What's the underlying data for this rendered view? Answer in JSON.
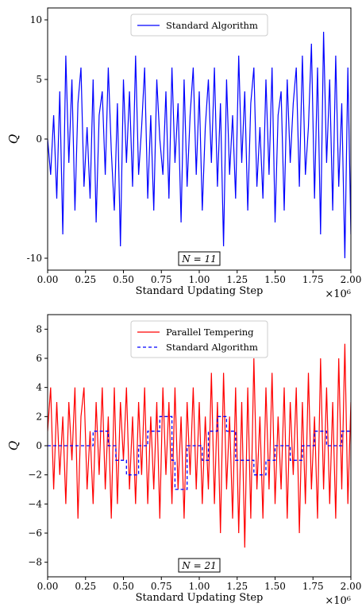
{
  "chart_data": [
    {
      "type": "line",
      "title": "",
      "xlabel": "Standard Updating Step",
      "ylabel": "Q",
      "x_scale_note": "×10⁶",
      "xlim": [
        0,
        2.0
      ],
      "ylim": [
        -11,
        11
      ],
      "x_ticks": [
        "0.00",
        "0.25",
        "0.50",
        "0.75",
        "1.00",
        "1.25",
        "1.50",
        "1.75",
        "2.00"
      ],
      "y_ticks": [
        {
          "value": 10,
          "label": "10"
        },
        {
          "value": 5,
          "label": "5"
        },
        {
          "value": 0,
          "label": "0"
        },
        {
          "value": -10,
          "label": "-10"
        }
      ],
      "annotation": "N = 11",
      "legend": {
        "placement": "top-center",
        "entries": [
          "Standard Algorithm"
        ]
      },
      "series": [
        {
          "name": "Standard Algorithm",
          "color": "#0000ff",
          "style": "solid",
          "x": [
            0.0,
            0.02,
            0.04,
            0.06,
            0.08,
            0.1,
            0.12,
            0.14,
            0.16,
            0.18,
            0.2,
            0.22,
            0.24,
            0.26,
            0.28,
            0.3,
            0.32,
            0.34,
            0.36,
            0.38,
            0.4,
            0.42,
            0.44,
            0.46,
            0.48,
            0.5,
            0.52,
            0.54,
            0.56,
            0.58,
            0.6,
            0.62,
            0.64,
            0.66,
            0.68,
            0.7,
            0.72,
            0.74,
            0.76,
            0.78,
            0.8,
            0.82,
            0.84,
            0.86,
            0.88,
            0.9,
            0.92,
            0.94,
            0.96,
            0.98,
            1.0,
            1.02,
            1.04,
            1.06,
            1.08,
            1.1,
            1.12,
            1.14,
            1.16,
            1.18,
            1.2,
            1.22,
            1.24,
            1.26,
            1.28,
            1.3,
            1.32,
            1.34,
            1.36,
            1.38,
            1.4,
            1.42,
            1.44,
            1.46,
            1.48,
            1.5,
            1.52,
            1.54,
            1.56,
            1.58,
            1.6,
            1.62,
            1.64,
            1.66,
            1.68,
            1.7,
            1.72,
            1.74,
            1.76,
            1.78,
            1.8,
            1.82,
            1.84,
            1.86,
            1.88,
            1.9,
            1.92,
            1.94,
            1.96,
            1.98,
            2.0
          ],
          "values": [
            0,
            -3,
            2,
            -5,
            4,
            -8,
            7,
            -2,
            5,
            -6,
            3,
            6,
            -4,
            1,
            -5,
            5,
            -7,
            2,
            4,
            -3,
            6,
            -1,
            -6,
            3,
            -9,
            5,
            -2,
            4,
            -4,
            7,
            -3,
            1,
            6,
            -5,
            2,
            -6,
            5,
            0,
            -3,
            4,
            -5,
            6,
            -2,
            3,
            -7,
            5,
            -4,
            2,
            6,
            -3,
            4,
            -6,
            1,
            5,
            -2,
            6,
            -4,
            3,
            -9,
            5,
            -3,
            2,
            -5,
            7,
            -2,
            4,
            -6,
            3,
            6,
            -4,
            1,
            -5,
            5,
            -3,
            6,
            -7,
            2,
            4,
            -6,
            5,
            -2,
            3,
            6,
            -4,
            7,
            -3,
            1,
            8,
            -5,
            6,
            -8,
            9,
            -2,
            5,
            -6,
            7,
            -4,
            3,
            -10,
            6,
            -8
          ]
        }
      ]
    },
    {
      "type": "line",
      "title": "",
      "xlabel": "Standard Updating Step",
      "ylabel": "Q",
      "x_scale_note": "×10⁶",
      "xlim": [
        0,
        2.0
      ],
      "ylim": [
        -9,
        9
      ],
      "x_ticks": [
        "0.00",
        "0.25",
        "0.50",
        "0.75",
        "1.00",
        "1.25",
        "1.50",
        "1.75",
        "2.00"
      ],
      "y_ticks": [
        {
          "value": 8,
          "label": "8"
        },
        {
          "value": 6,
          "label": "6"
        },
        {
          "value": 4,
          "label": "4"
        },
        {
          "value": 2,
          "label": "2"
        },
        {
          "value": 0,
          "label": "0"
        },
        {
          "value": -2,
          "label": "−2"
        },
        {
          "value": -4,
          "label": "−4"
        },
        {
          "value": -6,
          "label": "−6"
        },
        {
          "value": -8,
          "label": "−8"
        }
      ],
      "annotation": "N = 21",
      "legend": {
        "placement": "top-center",
        "entries": [
          "Parallel Tempering",
          "Standard Algorithm"
        ]
      },
      "series": [
        {
          "name": "Parallel Tempering",
          "color": "#ff0000",
          "style": "solid",
          "x": [
            0.0,
            0.02,
            0.04,
            0.06,
            0.08,
            0.1,
            0.12,
            0.14,
            0.16,
            0.18,
            0.2,
            0.22,
            0.24,
            0.26,
            0.28,
            0.3,
            0.32,
            0.34,
            0.36,
            0.38,
            0.4,
            0.42,
            0.44,
            0.46,
            0.48,
            0.5,
            0.52,
            0.54,
            0.56,
            0.58,
            0.6,
            0.62,
            0.64,
            0.66,
            0.68,
            0.7,
            0.72,
            0.74,
            0.76,
            0.78,
            0.8,
            0.82,
            0.84,
            0.86,
            0.88,
            0.9,
            0.92,
            0.94,
            0.96,
            0.98,
            1.0,
            1.02,
            1.04,
            1.06,
            1.08,
            1.1,
            1.12,
            1.14,
            1.16,
            1.18,
            1.2,
            1.22,
            1.24,
            1.26,
            1.28,
            1.3,
            1.32,
            1.34,
            1.36,
            1.38,
            1.4,
            1.42,
            1.44,
            1.46,
            1.48,
            1.5,
            1.52,
            1.54,
            1.56,
            1.58,
            1.6,
            1.62,
            1.64,
            1.66,
            1.68,
            1.7,
            1.72,
            1.74,
            1.76,
            1.78,
            1.8,
            1.82,
            1.84,
            1.86,
            1.88,
            1.9,
            1.92,
            1.94,
            1.96,
            1.98,
            2.0
          ],
          "values": [
            1,
            4,
            -3,
            3,
            -2,
            2,
            -4,
            3,
            -1,
            4,
            -5,
            2,
            4,
            -3,
            1,
            -4,
            3,
            -2,
            4,
            -3,
            2,
            -5,
            4,
            -4,
            3,
            -1,
            4,
            -3,
            2,
            -4,
            3,
            -2,
            4,
            -4,
            2,
            -3,
            3,
            -5,
            4,
            -2,
            3,
            -4,
            4,
            -3,
            2,
            -5,
            3,
            -2,
            4,
            -3,
            3,
            -4,
            2,
            -3,
            5,
            -4,
            3,
            -6,
            5,
            -3,
            2,
            -5,
            4,
            -6,
            3,
            -7,
            4,
            -5,
            6,
            -3,
            2,
            -5,
            4,
            -3,
            5,
            -4,
            2,
            -3,
            4,
            -5,
            3,
            -2,
            4,
            -6,
            3,
            -4,
            5,
            -3,
            2,
            -5,
            6,
            -3,
            4,
            -4,
            3,
            -5,
            6,
            -3,
            7,
            -4,
            3
          ]
        },
        {
          "name": "Standard Algorithm",
          "color": "#0000ff",
          "style": "dashed",
          "x": [
            0.0,
            0.3,
            0.3,
            0.4,
            0.4,
            0.45,
            0.45,
            0.52,
            0.52,
            0.6,
            0.6,
            0.66,
            0.66,
            0.74,
            0.74,
            0.82,
            0.82,
            0.84,
            0.84,
            0.88,
            0.88,
            0.92,
            0.92,
            1.02,
            1.02,
            1.06,
            1.06,
            1.12,
            1.12,
            1.18,
            1.18,
            1.24,
            1.24,
            1.36,
            1.36,
            1.44,
            1.44,
            1.5,
            1.5,
            1.6,
            1.6,
            1.68,
            1.68,
            1.76,
            1.76,
            1.84,
            1.84,
            1.94,
            1.94,
            2.0
          ],
          "values": [
            0,
            0,
            1,
            1,
            0,
            0,
            -1,
            -1,
            -2,
            -2,
            0,
            0,
            1,
            1,
            2,
            2,
            -1,
            -1,
            -3,
            -3,
            -3,
            -3,
            0,
            0,
            -1,
            -1,
            1,
            1,
            2,
            2,
            1,
            1,
            -1,
            -1,
            -2,
            -2,
            -1,
            -1,
            0,
            0,
            -1,
            -1,
            0,
            0,
            1,
            1,
            0,
            0,
            1,
            1
          ]
        }
      ]
    }
  ]
}
